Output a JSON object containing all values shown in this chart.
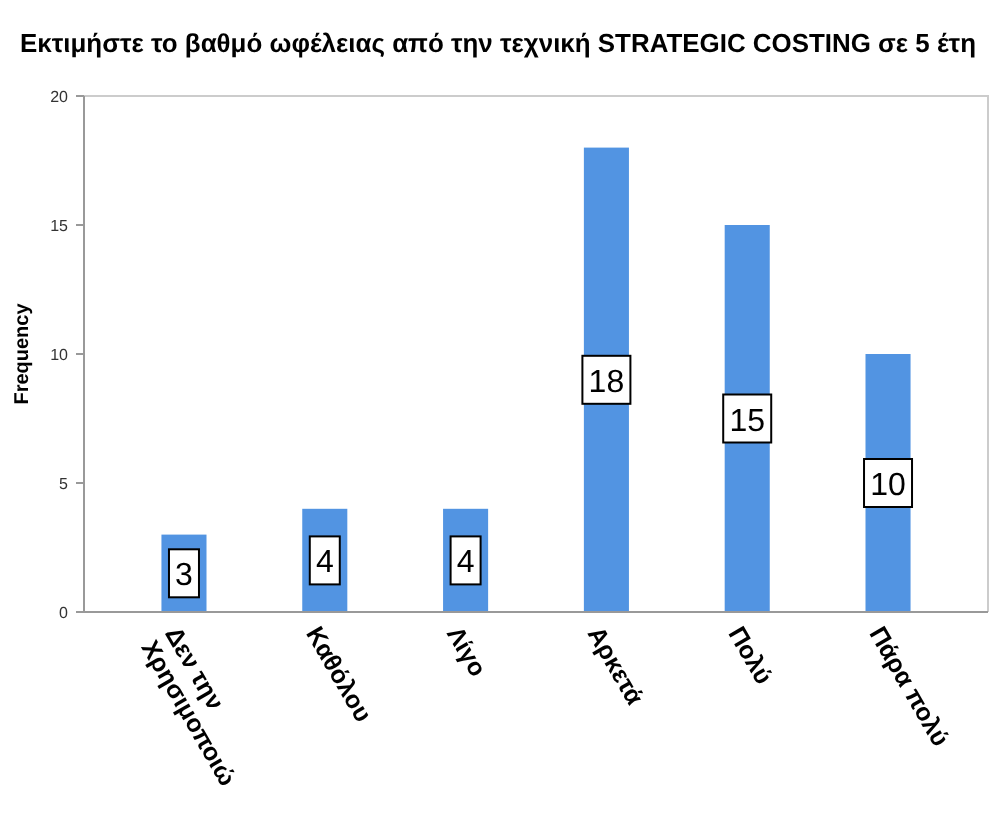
{
  "chart_data": {
    "type": "bar",
    "title": "Εκτιμήστε το βαθμό ωφέλειας από την τεχνική STRATEGIC COSTING σε 5 έτη",
    "ylabel": "Frequency",
    "categories": [
      "Δεν την Χρησιμοποιώ",
      "Καθόλου",
      "Λίγο",
      "Αρκετά",
      "Πολύ",
      "Πάρα πολύ"
    ],
    "values": [
      3,
      4,
      4,
      18,
      15,
      10
    ],
    "color": "#5294e2",
    "ylim": [
      0,
      20
    ],
    "yticks": [
      0,
      5,
      10,
      15,
      20
    ],
    "data_labels": true
  }
}
